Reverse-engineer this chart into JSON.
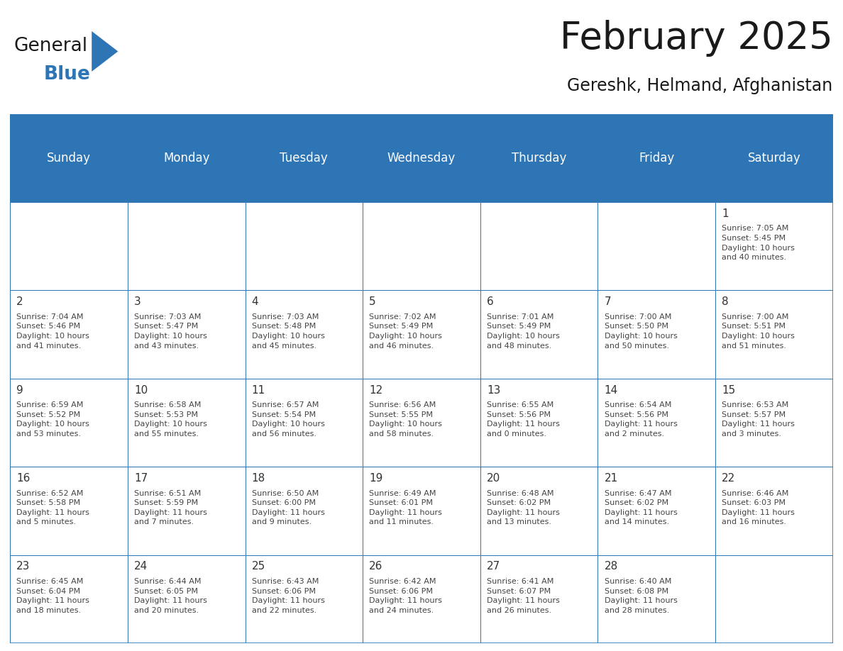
{
  "title": "February 2025",
  "subtitle": "Gereshk, Helmand, Afghanistan",
  "header_bg": "#2E75B6",
  "header_text_color": "#FFFFFF",
  "border_color": "#2E75B6",
  "cell_border_color": "#2E75B6",
  "day_headers": [
    "Sunday",
    "Monday",
    "Tuesday",
    "Wednesday",
    "Thursday",
    "Friday",
    "Saturday"
  ],
  "title_fontsize": 38,
  "subtitle_fontsize": 17,
  "header_fontsize": 12,
  "day_num_fontsize": 11,
  "cell_text_fontsize": 8,
  "logo_color_general": "#1a1a1a",
  "logo_color_blue": "#2E75B6",
  "weeks": [
    [
      {
        "day": null,
        "info": ""
      },
      {
        "day": null,
        "info": ""
      },
      {
        "day": null,
        "info": ""
      },
      {
        "day": null,
        "info": ""
      },
      {
        "day": null,
        "info": ""
      },
      {
        "day": null,
        "info": ""
      },
      {
        "day": 1,
        "info": "Sunrise: 7:05 AM\nSunset: 5:45 PM\nDaylight: 10 hours\nand 40 minutes."
      }
    ],
    [
      {
        "day": 2,
        "info": "Sunrise: 7:04 AM\nSunset: 5:46 PM\nDaylight: 10 hours\nand 41 minutes."
      },
      {
        "day": 3,
        "info": "Sunrise: 7:03 AM\nSunset: 5:47 PM\nDaylight: 10 hours\nand 43 minutes."
      },
      {
        "day": 4,
        "info": "Sunrise: 7:03 AM\nSunset: 5:48 PM\nDaylight: 10 hours\nand 45 minutes."
      },
      {
        "day": 5,
        "info": "Sunrise: 7:02 AM\nSunset: 5:49 PM\nDaylight: 10 hours\nand 46 minutes."
      },
      {
        "day": 6,
        "info": "Sunrise: 7:01 AM\nSunset: 5:49 PM\nDaylight: 10 hours\nand 48 minutes."
      },
      {
        "day": 7,
        "info": "Sunrise: 7:00 AM\nSunset: 5:50 PM\nDaylight: 10 hours\nand 50 minutes."
      },
      {
        "day": 8,
        "info": "Sunrise: 7:00 AM\nSunset: 5:51 PM\nDaylight: 10 hours\nand 51 minutes."
      }
    ],
    [
      {
        "day": 9,
        "info": "Sunrise: 6:59 AM\nSunset: 5:52 PM\nDaylight: 10 hours\nand 53 minutes."
      },
      {
        "day": 10,
        "info": "Sunrise: 6:58 AM\nSunset: 5:53 PM\nDaylight: 10 hours\nand 55 minutes."
      },
      {
        "day": 11,
        "info": "Sunrise: 6:57 AM\nSunset: 5:54 PM\nDaylight: 10 hours\nand 56 minutes."
      },
      {
        "day": 12,
        "info": "Sunrise: 6:56 AM\nSunset: 5:55 PM\nDaylight: 10 hours\nand 58 minutes."
      },
      {
        "day": 13,
        "info": "Sunrise: 6:55 AM\nSunset: 5:56 PM\nDaylight: 11 hours\nand 0 minutes."
      },
      {
        "day": 14,
        "info": "Sunrise: 6:54 AM\nSunset: 5:56 PM\nDaylight: 11 hours\nand 2 minutes."
      },
      {
        "day": 15,
        "info": "Sunrise: 6:53 AM\nSunset: 5:57 PM\nDaylight: 11 hours\nand 3 minutes."
      }
    ],
    [
      {
        "day": 16,
        "info": "Sunrise: 6:52 AM\nSunset: 5:58 PM\nDaylight: 11 hours\nand 5 minutes."
      },
      {
        "day": 17,
        "info": "Sunrise: 6:51 AM\nSunset: 5:59 PM\nDaylight: 11 hours\nand 7 minutes."
      },
      {
        "day": 18,
        "info": "Sunrise: 6:50 AM\nSunset: 6:00 PM\nDaylight: 11 hours\nand 9 minutes."
      },
      {
        "day": 19,
        "info": "Sunrise: 6:49 AM\nSunset: 6:01 PM\nDaylight: 11 hours\nand 11 minutes."
      },
      {
        "day": 20,
        "info": "Sunrise: 6:48 AM\nSunset: 6:02 PM\nDaylight: 11 hours\nand 13 minutes."
      },
      {
        "day": 21,
        "info": "Sunrise: 6:47 AM\nSunset: 6:02 PM\nDaylight: 11 hours\nand 14 minutes."
      },
      {
        "day": 22,
        "info": "Sunrise: 6:46 AM\nSunset: 6:03 PM\nDaylight: 11 hours\nand 16 minutes."
      }
    ],
    [
      {
        "day": 23,
        "info": "Sunrise: 6:45 AM\nSunset: 6:04 PM\nDaylight: 11 hours\nand 18 minutes."
      },
      {
        "day": 24,
        "info": "Sunrise: 6:44 AM\nSunset: 6:05 PM\nDaylight: 11 hours\nand 20 minutes."
      },
      {
        "day": 25,
        "info": "Sunrise: 6:43 AM\nSunset: 6:06 PM\nDaylight: 11 hours\nand 22 minutes."
      },
      {
        "day": 26,
        "info": "Sunrise: 6:42 AM\nSunset: 6:06 PM\nDaylight: 11 hours\nand 24 minutes."
      },
      {
        "day": 27,
        "info": "Sunrise: 6:41 AM\nSunset: 6:07 PM\nDaylight: 11 hours\nand 26 minutes."
      },
      {
        "day": 28,
        "info": "Sunrise: 6:40 AM\nSunset: 6:08 PM\nDaylight: 11 hours\nand 28 minutes."
      },
      {
        "day": null,
        "info": ""
      }
    ]
  ]
}
